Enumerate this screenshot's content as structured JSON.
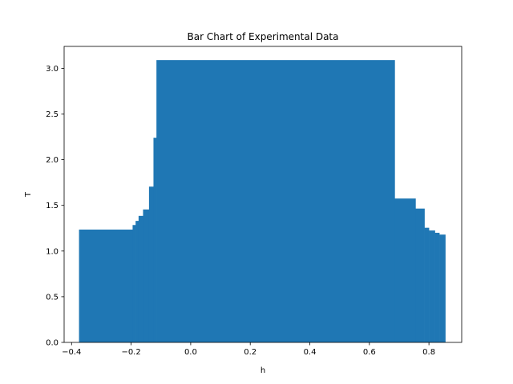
{
  "chart_data": {
    "type": "bar",
    "title": "Bar Chart of Experimental Data",
    "xlabel": "h",
    "ylabel": "T",
    "xlim": [
      -0.425,
      0.91
    ],
    "ylim": [
      0,
      3.24
    ],
    "xticks": [
      -0.4,
      -0.2,
      0.0,
      0.2,
      0.4,
      0.6,
      0.8
    ],
    "xtick_labels": [
      "−0.4",
      "−0.2",
      "0.0",
      "0.2",
      "0.4",
      "0.6",
      "0.8"
    ],
    "yticks": [
      0.0,
      0.5,
      1.0,
      1.5,
      2.0,
      2.5,
      3.0
    ],
    "ytick_labels": [
      "0.0",
      "0.5",
      "1.0",
      "1.5",
      "2.0",
      "2.5",
      "3.0"
    ],
    "grid": false,
    "color": "#1f77b4",
    "bars": [
      {
        "x0": -0.375,
        "x1": -0.195,
        "y": 1.235
      },
      {
        "x0": -0.195,
        "x1": -0.185,
        "y": 1.285
      },
      {
        "x0": -0.185,
        "x1": -0.175,
        "y": 1.33
      },
      {
        "x0": -0.175,
        "x1": -0.16,
        "y": 1.385
      },
      {
        "x0": -0.16,
        "x1": -0.14,
        "y": 1.455
      },
      {
        "x0": -0.14,
        "x1": -0.125,
        "y": 1.705
      },
      {
        "x0": -0.125,
        "x1": -0.115,
        "y": 2.24
      },
      {
        "x0": -0.115,
        "x1": 0.685,
        "y": 3.09
      },
      {
        "x0": 0.685,
        "x1": 0.755,
        "y": 1.575
      },
      {
        "x0": 0.755,
        "x1": 0.785,
        "y": 1.465
      },
      {
        "x0": 0.785,
        "x1": 0.8,
        "y": 1.255
      },
      {
        "x0": 0.8,
        "x1": 0.82,
        "y": 1.225
      },
      {
        "x0": 0.82,
        "x1": 0.835,
        "y": 1.2
      },
      {
        "x0": 0.835,
        "x1": 0.855,
        "y": 1.18
      }
    ]
  }
}
